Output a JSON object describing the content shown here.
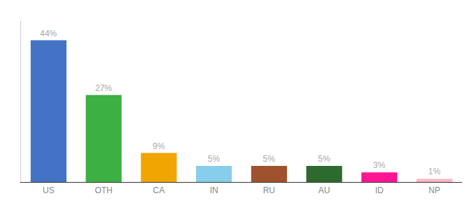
{
  "chart_data": {
    "type": "bar",
    "categories": [
      "US",
      "OTH",
      "CA",
      "IN",
      "RU",
      "AU",
      "ID",
      "NP"
    ],
    "values": [
      44,
      27,
      9,
      5,
      5,
      5,
      3,
      1
    ],
    "value_labels": [
      "44%",
      "27%",
      "9%",
      "5%",
      "5%",
      "5%",
      "3%",
      "1%"
    ],
    "colors": [
      "#4472c4",
      "#3cb043",
      "#f0a500",
      "#87ceeb",
      "#a0522d",
      "#2d6a2d",
      "#ff1493",
      "#ffb6c1"
    ],
    "ylim": [
      0,
      50
    ],
    "data_labels": true,
    "tick_labels": "x",
    "grid": false
  }
}
